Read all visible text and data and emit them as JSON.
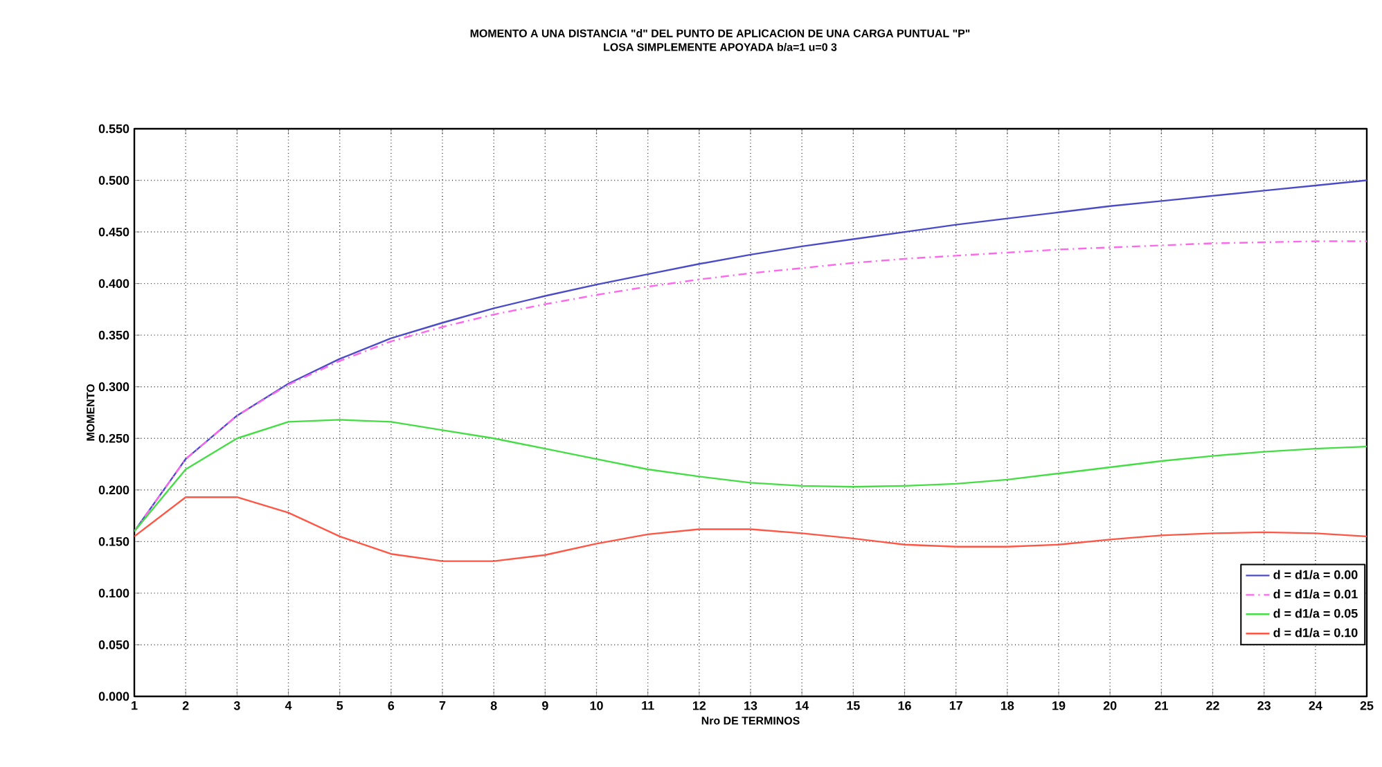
{
  "chart_data": {
    "type": "line",
    "title": "MOMENTO A UNA DISTANCIA \"d\" DEL PUNTO DE APLICACION DE UNA CARGA PUNTUAL \"P\"",
    "subtitle": "LOSA SIMPLEMENTE APOYADA b/a=1 u=0 3",
    "xlabel": "Nro DE TERMINOS",
    "ylabel": "MOMENTO",
    "x": [
      1,
      2,
      3,
      4,
      5,
      6,
      7,
      8,
      9,
      10,
      11,
      12,
      13,
      14,
      15,
      16,
      17,
      18,
      19,
      20,
      21,
      22,
      23,
      24,
      25
    ],
    "xlim": [
      1,
      25
    ],
    "xticks": [
      1,
      2,
      3,
      4,
      5,
      6,
      7,
      8,
      9,
      10,
      11,
      12,
      13,
      14,
      15,
      16,
      17,
      18,
      19,
      20,
      21,
      22,
      23,
      24,
      25
    ],
    "ylim": [
      0,
      0.55
    ],
    "yticks": [
      {
        "value": 0,
        "label": "0.000"
      },
      {
        "value": 0.05,
        "label": "0.050"
      },
      {
        "value": 0.1,
        "label": "0.100"
      },
      {
        "value": 0.15,
        "label": "0.150"
      },
      {
        "value": 0.2,
        "label": "0.200"
      },
      {
        "value": 0.25,
        "label": "0.250"
      },
      {
        "value": 0.3,
        "label": "0.300"
      },
      {
        "value": 0.35,
        "label": "0.350"
      },
      {
        "value": 0.4,
        "label": "0.400"
      },
      {
        "value": 0.45,
        "label": "0.450"
      },
      {
        "value": 0.5,
        "label": "0.500"
      },
      {
        "value": 0.55,
        "label": "0.550"
      }
    ],
    "grid": true,
    "legend": "bottom right",
    "marker": "none",
    "series": [
      {
        "name": "d = d1/a = 0.00",
        "color": "#4b4bc8",
        "line_style": "solid",
        "values": [
          0.16,
          0.23,
          0.272,
          0.303,
          0.327,
          0.347,
          0.362,
          0.376,
          0.388,
          0.399,
          0.409,
          0.419,
          0.428,
          0.436,
          0.443,
          0.45,
          0.457,
          0.463,
          0.469,
          0.475,
          0.48,
          0.485,
          0.49,
          0.495,
          0.5
        ]
      },
      {
        "name": "d = d1/a = 0.01",
        "color": "#ff66ee",
        "line_style": "dashed",
        "values": [
          0.16,
          0.23,
          0.272,
          0.302,
          0.325,
          0.344,
          0.358,
          0.37,
          0.38,
          0.389,
          0.397,
          0.404,
          0.41,
          0.415,
          0.42,
          0.424,
          0.427,
          0.43,
          0.433,
          0.435,
          0.437,
          0.439,
          0.44,
          0.441,
          0.441
        ]
      },
      {
        "name": "d = d1/a = 0.05",
        "color": "#44dd44",
        "line_style": "solid",
        "values": [
          0.16,
          0.22,
          0.25,
          0.266,
          0.268,
          0.266,
          0.258,
          0.25,
          0.24,
          0.23,
          0.22,
          0.213,
          0.207,
          0.204,
          0.203,
          0.204,
          0.206,
          0.21,
          0.216,
          0.222,
          0.228,
          0.233,
          0.237,
          0.24,
          0.242
        ]
      },
      {
        "name": "d = d1/a = 0.10",
        "color": "#ff5544",
        "line_style": "solid",
        "values": [
          0.155,
          0.193,
          0.193,
          0.178,
          0.155,
          0.138,
          0.131,
          0.131,
          0.137,
          0.148,
          0.157,
          0.162,
          0.162,
          0.158,
          0.153,
          0.147,
          0.145,
          0.145,
          0.147,
          0.152,
          0.156,
          0.158,
          0.159,
          0.158,
          0.155
        ]
      }
    ]
  }
}
